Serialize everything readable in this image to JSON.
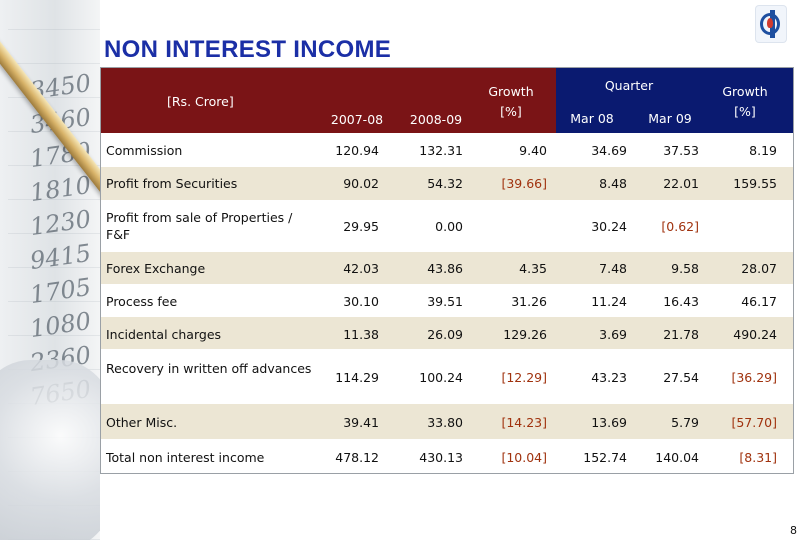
{
  "slide": {
    "title": "NON INTEREST INCOME",
    "page_number": "8"
  },
  "table": {
    "unit_label": "[Rs. Crore]",
    "headers": {
      "fy1": "2007-08",
      "fy2": "2008-09",
      "growth_line1": "Growth",
      "growth_line2": "[%]",
      "quarter": "Quarter",
      "q1": "Mar 08",
      "q2": "Mar 09",
      "qgrowth_line1": "Growth",
      "qgrowth_line2": "[%]"
    },
    "rows": [
      {
        "label": "Commission",
        "fy1": "120.94",
        "fy2": "132.31",
        "growth": "9.40",
        "q1": "34.69",
        "q2": "37.53",
        "qgrowth": "8.19"
      },
      {
        "label": "Profit from Securities",
        "fy1": "90.02",
        "fy2": "54.32",
        "growth": "[39.66]",
        "q1": "8.48",
        "q2": "22.01",
        "qgrowth": "159.55"
      },
      {
        "label": "Profit from sale of Properties / F&F",
        "fy1": "29.95",
        "fy2": "0.00",
        "growth": "",
        "q1": "30.24",
        "q2": "[0.62]",
        "qgrowth": ""
      },
      {
        "label": "Forex Exchange",
        "fy1": "42.03",
        "fy2": "43.86",
        "growth": "4.35",
        "q1": "7.48",
        "q2": "9.58",
        "qgrowth": "28.07"
      },
      {
        "label": "Process fee",
        "fy1": "30.10",
        "fy2": "39.51",
        "growth": "31.26",
        "q1": "11.24",
        "q2": "16.43",
        "qgrowth": "46.17"
      },
      {
        "label": "Incidental charges",
        "fy1": "11.38",
        "fy2": "26.09",
        "growth": "129.26",
        "q1": "3.69",
        "q2": "21.78",
        "qgrowth": "490.24"
      },
      {
        "label": "Recovery in written off advances",
        "fy1": "114.29",
        "fy2": "100.24",
        "growth": "[12.29]",
        "q1": "43.23",
        "q2": "27.54",
        "qgrowth": "[36.29]"
      },
      {
        "label": "Other Misc.",
        "fy1": "39.41",
        "fy2": "33.80",
        "growth": "[14.23]",
        "q1": "13.69",
        "q2": "5.79",
        "qgrowth": "[57.70]"
      },
      {
        "label": "Total non interest income",
        "fy1": "478.12",
        "fy2": "430.13",
        "growth": "[10.04]",
        "q1": "152.74",
        "q2": "140.04",
        "qgrowth": "[8.31]"
      }
    ]
  },
  "colors": {
    "header_red": "#7a1416",
    "header_blue": "#0a1a70",
    "title_blue": "#1b2fa6",
    "negative": "#a0320e",
    "band": "#ece6d4"
  },
  "icons": {
    "logo": "bank-logo-icon",
    "photo": "pen-and-ledger-image"
  }
}
